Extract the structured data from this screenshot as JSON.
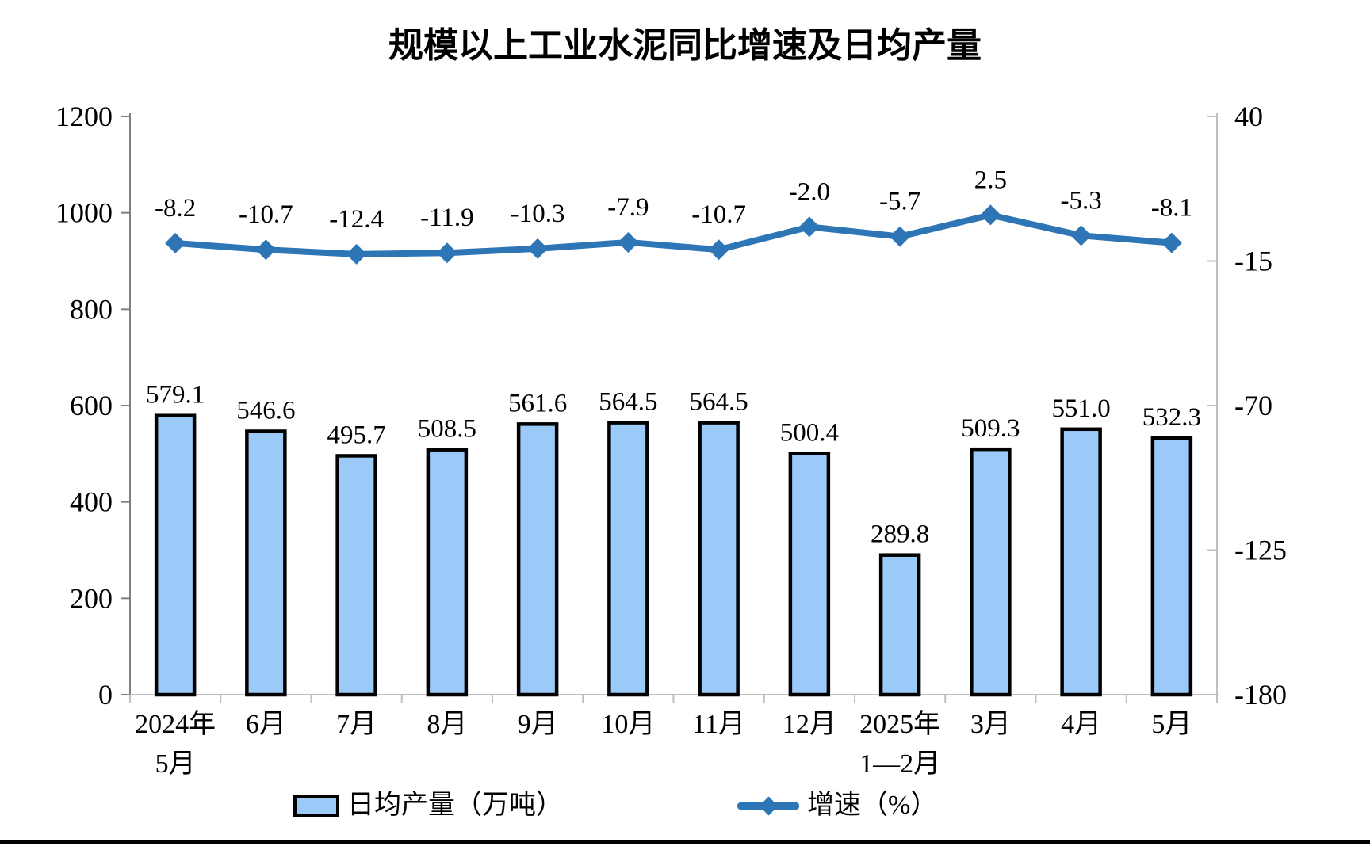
{
  "title": "规模以上工业水泥同比增速及日均产量",
  "legend": {
    "bar_label": "日均产量（万吨）",
    "line_label": "增速（%）"
  },
  "colors": {
    "bar_fill": "#9CCAF8",
    "bar_border": "#000000",
    "line": "#2E75B6",
    "axis_light": "#BFBFBF",
    "axis_dark": "#7F7F7F",
    "text": "#000000",
    "bottom_rule": "#000000"
  },
  "chart_data": {
    "type": "bar",
    "subtype": "bar-line-combo",
    "title": "规模以上工业水泥同比增速及日均产量",
    "categories": [
      [
        "2024年",
        "5月"
      ],
      [
        "6月"
      ],
      [
        "7月"
      ],
      [
        "8月"
      ],
      [
        "9月"
      ],
      [
        "10月"
      ],
      [
        "11月"
      ],
      [
        "12月"
      ],
      [
        "2025年",
        "1—2月"
      ],
      [
        "3月"
      ],
      [
        "4月"
      ],
      [
        "5月"
      ]
    ],
    "series": [
      {
        "name": "日均产量（万吨）",
        "type": "bar",
        "axis": "left",
        "unit": "万吨",
        "values": [
          579.1,
          546.6,
          495.7,
          508.5,
          561.6,
          564.5,
          564.5,
          500.4,
          289.8,
          509.3,
          551.0,
          532.3
        ]
      },
      {
        "name": "增速（%）",
        "type": "line",
        "axis": "right",
        "unit": "%",
        "values": [
          -8.2,
          -10.7,
          -12.4,
          -11.9,
          -10.3,
          -7.9,
          -10.7,
          -2.0,
          -5.7,
          2.5,
          -5.3,
          -8.1
        ]
      }
    ],
    "left_axis": {
      "min": 0,
      "max": 1200,
      "ticks": [
        1200,
        1000,
        800,
        600,
        400,
        200,
        0
      ]
    },
    "right_axis": {
      "min": -180,
      "max": 40,
      "ticks": [
        40,
        -15,
        -70,
        -125,
        -180
      ]
    },
    "grid": false,
    "data_labels": true,
    "legend_position": "bottom"
  }
}
